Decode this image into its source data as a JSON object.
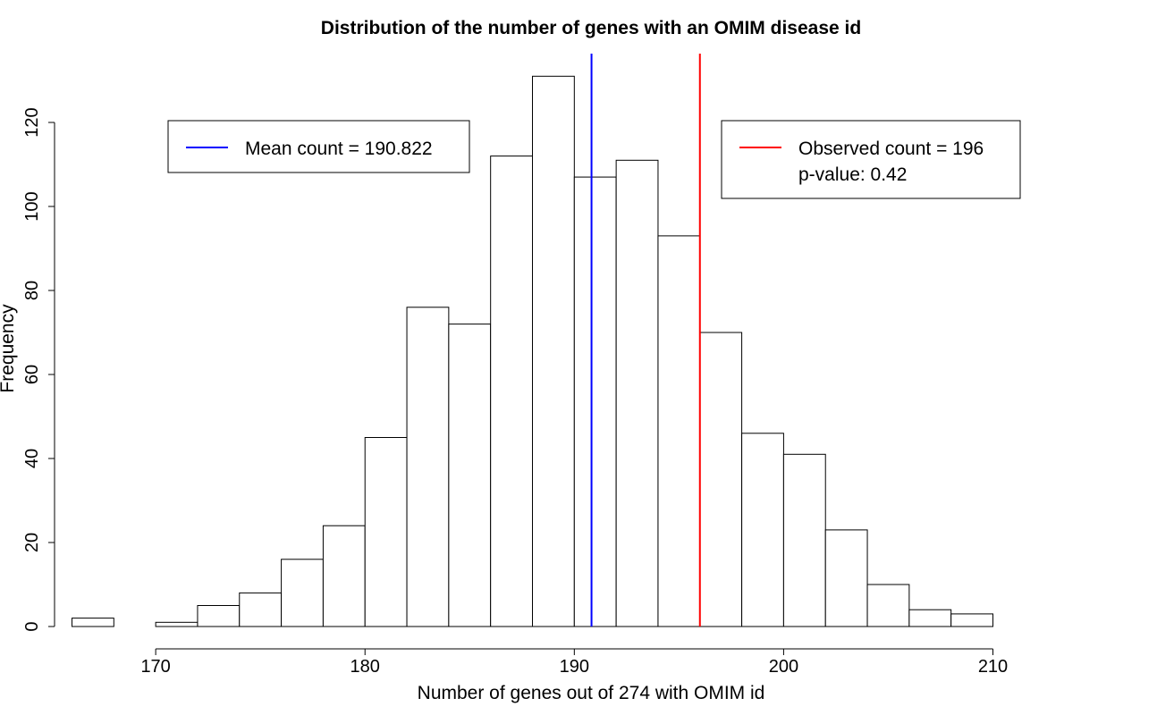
{
  "chart_data": {
    "type": "bar",
    "subtype": "histogram",
    "title": "Distribution of the number of genes with an OMIM disease id",
    "xlabel": "Number of genes out of 274 with OMIM id",
    "ylabel": "Frequency",
    "xlim": [
      166,
      210
    ],
    "ylim": [
      0,
      130
    ],
    "x_ticks": [
      170,
      180,
      190,
      200,
      210
    ],
    "y_ticks": [
      0,
      20,
      40,
      60,
      80,
      100,
      120
    ],
    "bin_width": 2,
    "bins": [
      {
        "start": 166,
        "end": 168,
        "count": 2
      },
      {
        "start": 168,
        "end": 170,
        "count": 0
      },
      {
        "start": 170,
        "end": 172,
        "count": 1
      },
      {
        "start": 172,
        "end": 174,
        "count": 5
      },
      {
        "start": 174,
        "end": 176,
        "count": 8
      },
      {
        "start": 176,
        "end": 178,
        "count": 16
      },
      {
        "start": 178,
        "end": 180,
        "count": 24
      },
      {
        "start": 180,
        "end": 182,
        "count": 45
      },
      {
        "start": 182,
        "end": 184,
        "count": 76
      },
      {
        "start": 184,
        "end": 186,
        "count": 72
      },
      {
        "start": 186,
        "end": 188,
        "count": 112
      },
      {
        "start": 188,
        "end": 190,
        "count": 131
      },
      {
        "start": 190,
        "end": 192,
        "count": 107
      },
      {
        "start": 192,
        "end": 194,
        "count": 111
      },
      {
        "start": 194,
        "end": 196,
        "count": 93
      },
      {
        "start": 196,
        "end": 198,
        "count": 70
      },
      {
        "start": 198,
        "end": 200,
        "count": 46
      },
      {
        "start": 200,
        "end": 202,
        "count": 41
      },
      {
        "start": 202,
        "end": 204,
        "count": 23
      },
      {
        "start": 204,
        "end": 206,
        "count": 10
      },
      {
        "start": 206,
        "end": 208,
        "count": 4
      },
      {
        "start": 208,
        "end": 210,
        "count": 3
      }
    ],
    "reference_lines": [
      {
        "name": "mean",
        "x": 190.822,
        "color": "#0000ff"
      },
      {
        "name": "observed",
        "x": 196,
        "color": "#ff0000"
      }
    ],
    "legends": [
      {
        "position": "top-left",
        "color": "#0000ff",
        "lines": [
          "Mean count = 190.822"
        ]
      },
      {
        "position": "top-right",
        "color": "#ff0000",
        "lines": [
          "Observed count = 196",
          "p-value: 0.42"
        ]
      }
    ]
  }
}
